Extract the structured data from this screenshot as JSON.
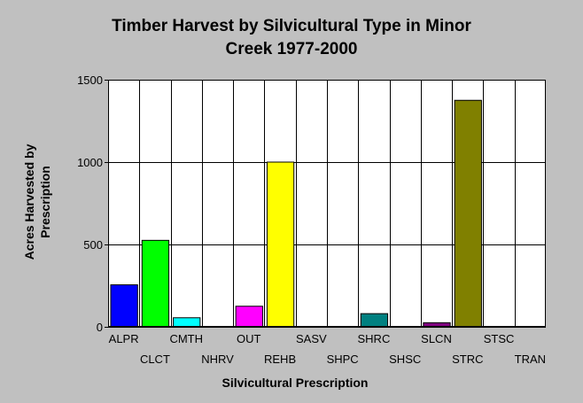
{
  "chart_data": {
    "type": "bar",
    "title_line1": "Timber Harvest by Silvicultural Type in Minor",
    "title_line2": "Creek 1977-2000",
    "xlabel": "Silvicultural Prescription",
    "ylabel_line1": "Acres Harvested by",
    "ylabel_line2": "Prescription",
    "ylim": [
      0,
      1500
    ],
    "yticks": [
      0,
      500,
      1000,
      1500
    ],
    "grid": true,
    "categories": [
      "ALPR",
      "CLCT",
      "CMTH",
      "NHRV",
      "OUT",
      "REHB",
      "SASV",
      "SHPC",
      "SHRC",
      "SHSC",
      "SLCN",
      "STRC",
      "STSC",
      "TRAN"
    ],
    "values": [
      255,
      525,
      55,
      0,
      125,
      1000,
      0,
      0,
      80,
      0,
      25,
      1375,
      0,
      0
    ],
    "colors": [
      "#0000ff",
      "#00ff00",
      "#00ffff",
      "#ff0000",
      "#ff00ff",
      "#ffff00",
      "#808080",
      "#000080",
      "#008080",
      "#008000",
      "#800080",
      "#808000",
      "#800000",
      "#404040"
    ]
  }
}
